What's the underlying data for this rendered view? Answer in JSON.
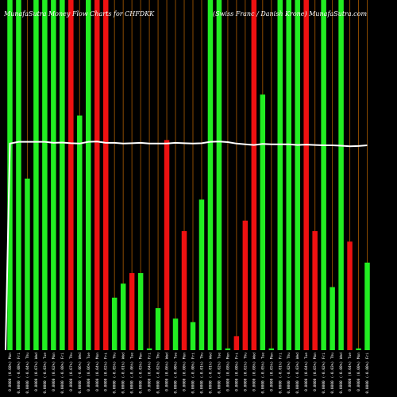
{
  "chart_data": {
    "type": "bar",
    "title_left": "MunafaSutra Money Flow Charts for CHFDKK",
    "title_right": "(Swiss Franc / Danish Krone) MunafaSutra.com",
    "colors": {
      "background": "#000000",
      "green": "#22ee22",
      "red": "#ee1111",
      "white": "#ffffff",
      "gridline": "#8a4a00"
    },
    "ylim": [
      0,
      100
    ],
    "bars": [
      {
        "value": 100,
        "color": "green",
        "label": "0.0000 (0.08%) Mon"
      },
      {
        "value": 100,
        "color": "green",
        "label": "0.0000 (-0.08%) Fri"
      },
      {
        "value": 49,
        "color": "green",
        "label": "0.0000 (-0.04%) Thu"
      },
      {
        "value": 100,
        "color": "green",
        "label": "0.0000 (0.07%) Wed"
      },
      {
        "value": 100,
        "color": "green",
        "label": "0.0000 (-0.03%) Tue"
      },
      {
        "value": 100,
        "color": "green",
        "label": "0.0000 (0.02%) Mon"
      },
      {
        "value": 100,
        "color": "green",
        "label": "0.0000 (-0.08%) Fri"
      },
      {
        "value": 100,
        "color": "red",
        "label": "0.0000 (0.07%) Thu"
      },
      {
        "value": 67,
        "color": "green",
        "label": "0.0000 (-0.06%) Wed"
      },
      {
        "value": 100,
        "color": "green",
        "label": "0.0000 (0.06%) Tue"
      },
      {
        "value": 100,
        "color": "red",
        "label": "0.0000 (0.04%) Mon"
      },
      {
        "value": 100,
        "color": "red",
        "label": "0.0000 (0.02%) Fri"
      },
      {
        "value": 15,
        "color": "green",
        "label": "0.0000 (-0.05%) Thu"
      },
      {
        "value": 19,
        "color": "green",
        "label": "0.0000 (-0.01%) Wed"
      },
      {
        "value": 22,
        "color": "red",
        "label": "0.0000 (-0.06%) Tue"
      },
      {
        "value": 22,
        "color": "green",
        "label": "0.0000 (-0.03%) Mon"
      },
      {
        "value": 0.5,
        "color": "green",
        "label": "0.0000 (0.04%) Fri"
      },
      {
        "value": 12,
        "color": "green",
        "label": "0.0000 (-0.02%) Thu"
      },
      {
        "value": 60,
        "color": "red",
        "label": "0.0000 (0.06%) Wed"
      },
      {
        "value": 9,
        "color": "green",
        "label": "0.0000 (-0.00%) Tue"
      },
      {
        "value": 34,
        "color": "red",
        "label": "0.0000 (0.00%) Mon"
      },
      {
        "value": 8,
        "color": "green",
        "label": "0.0000 (-0.00%) Fri"
      },
      {
        "value": 43,
        "color": "green",
        "label": "0.0000 (-0.01%) Thu"
      },
      {
        "value": 100,
        "color": "green",
        "label": "0.0000 (-0.01%) Wed"
      },
      {
        "value": 100,
        "color": "green",
        "label": "0.0000 (-0.02%) Tue"
      },
      {
        "value": 0.5,
        "color": "green",
        "label": "0.0000 (0.08%) Mon"
      },
      {
        "value": 4,
        "color": "red",
        "label": "0.0000 (0.00%) Fri"
      },
      {
        "value": 37,
        "color": "red",
        "label": "0.0000 (0.02%) Thu"
      },
      {
        "value": 100,
        "color": "red",
        "label": "0.0000 (0.08%) Wed"
      },
      {
        "value": 73,
        "color": "green",
        "label": "0.0000 (-0.05%) Tue"
      },
      {
        "value": 0.5,
        "color": "green",
        "label": "0.0000 (0.05%) Mon"
      },
      {
        "value": 100,
        "color": "green",
        "label": "0.0000 (-0.01%) Fri"
      },
      {
        "value": 100,
        "color": "green",
        "label": "0.0000 (-0.02%) Thu"
      },
      {
        "value": 100,
        "color": "green",
        "label": "0.0000 (-0.03%) Wed"
      },
      {
        "value": 100,
        "color": "red",
        "label": "0.0000 (0.04%) Tue"
      },
      {
        "value": 34,
        "color": "red",
        "label": "0.0000 (0.05%) Mon"
      },
      {
        "value": 100,
        "color": "green",
        "label": "0.0000 (-0.02%) Fri"
      },
      {
        "value": 18,
        "color": "green",
        "label": "0.0000 (-0.03%) Thu"
      },
      {
        "value": 100,
        "color": "green",
        "label": "0.0000 (-0.08%) Wed"
      },
      {
        "value": 31,
        "color": "red",
        "label": "0.0000 (0.04%) Tue"
      },
      {
        "value": 0.5,
        "color": "green",
        "label": "0.0000 (0.00%) Mon"
      },
      {
        "value": 25,
        "color": "green",
        "label": "0.0000 (-0.00%) Fri"
      }
    ],
    "line": [
      59,
      59.5,
      59.5,
      59.5,
      59.5,
      59.2,
      59.3,
      59.1,
      59.0,
      59.5,
      59.6,
      59.2,
      59.2,
      59.0,
      59.1,
      59.2,
      59.0,
      59.0,
      59.0,
      59.2,
      59.1,
      59.0,
      59.1,
      59.5,
      59.6,
      59.4,
      59.0,
      58.8,
      58.6,
      58.9,
      58.8,
      58.8,
      58.8,
      58.6,
      58.7,
      58.6,
      58.5,
      58.5,
      58.4,
      58.2,
      58.3,
      58.5
    ]
  }
}
